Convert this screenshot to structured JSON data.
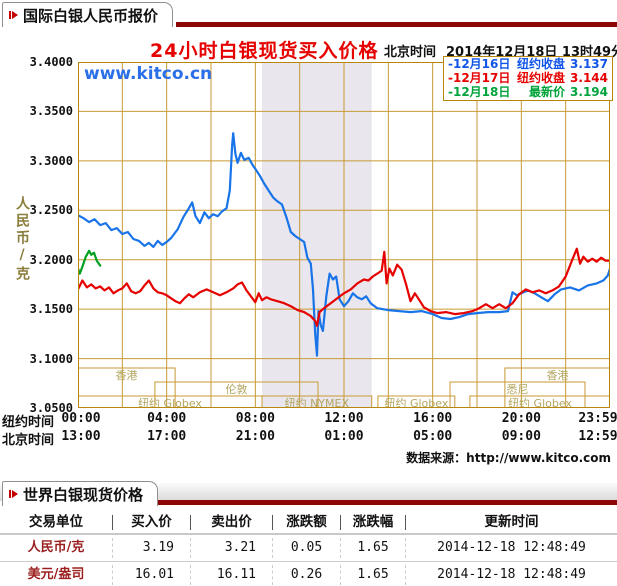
{
  "section1": {
    "tab": "国际白银人民币报价"
  },
  "section2": {
    "tab": "世界白银现货价格",
    "table": {
      "columns": [
        "交易单位",
        "买入价",
        "卖出价",
        "涨跌额",
        "涨跌幅",
        "更新时间"
      ],
      "rows": [
        [
          "人民币/克",
          "3.19",
          "3.21",
          "0.05",
          "1.65",
          "2014-12-18 12:48:49"
        ],
        [
          "美元/盎司",
          "16.01",
          "16.11",
          "0.26",
          "1.65",
          "2014-12-18 12:48:49"
        ]
      ]
    }
  },
  "chart_data": {
    "type": "line",
    "title": "24小时白银现货买入价格",
    "subtitle_label": "北京时间",
    "subtitle_time": "2014年12月18日 13时49分",
    "watermark": "www.kitco.cn",
    "ylabel": "人民币/克",
    "source": "数据来源：http://www.kitco.com",
    "ylim": [
      3.05,
      3.4
    ],
    "ytick_labels": [
      "3.4000",
      "3.3500",
      "3.3000",
      "3.2500",
      "3.2000",
      "3.1500",
      "3.1000",
      "3.0500"
    ],
    "x_hours": 24,
    "grid": "on",
    "nymex_band_hours": [
      8.3,
      13.25
    ],
    "xticks_ny": {
      "label": "纽约时间",
      "ticks": [
        "00:00",
        "04:00",
        "08:00",
        "12:00",
        "16:00",
        "20:00",
        "23:59"
      ]
    },
    "xticks_bj": {
      "label": "北京时间",
      "ticks": [
        "13:00",
        "17:00",
        "21:00",
        "01:00",
        "05:00",
        "09:00",
        "12:59"
      ]
    },
    "legend_position": "top-right",
    "legend": [
      {
        "label": "-12月16日",
        "desc": "纽约收盘",
        "value": "3.137",
        "color": "#1155e8"
      },
      {
        "label": "-12月17日",
        "desc": "纽约收盘",
        "value": "3.144",
        "color": "#e60000"
      },
      {
        "label": "-12月18日",
        "desc": "最新价",
        "value": "3.194",
        "color": "#00a33a"
      }
    ],
    "sessions": [
      {
        "row": 0,
        "start_h": 0,
        "end_h": 4.38,
        "label": "香港"
      },
      {
        "row": 0,
        "start_h": 19.26,
        "end_h": 24,
        "label": "香港"
      },
      {
        "row": 1,
        "start_h": 3.47,
        "end_h": 10.83,
        "label": "伦敦"
      },
      {
        "row": 1,
        "start_h": 16.78,
        "end_h": 22.87,
        "label": "悉尼"
      },
      {
        "row": 2,
        "start_h": 0,
        "end_h": 8.3,
        "label": "纽约 Globex"
      },
      {
        "row": 2,
        "start_h": 8.3,
        "end_h": 13.25,
        "label": "纽约 NYMEX"
      },
      {
        "row": 2,
        "start_h": 13.53,
        "end_h": 17.0,
        "label": "纽约 Globex"
      },
      {
        "row": 2,
        "start_h": 17.68,
        "end_h": 24,
        "label": "纽约 Globex"
      }
    ],
    "series": [
      {
        "name": "dec16",
        "color": "#1874e8",
        "width": 2.2,
        "points": [
          [
            0,
            3.245
          ],
          [
            0.25,
            3.242
          ],
          [
            0.5,
            3.238
          ],
          [
            0.75,
            3.241
          ],
          [
            1,
            3.235
          ],
          [
            1.25,
            3.237
          ],
          [
            1.5,
            3.23
          ],
          [
            1.75,
            3.232
          ],
          [
            2,
            3.226
          ],
          [
            2.25,
            3.228
          ],
          [
            2.5,
            3.221
          ],
          [
            2.75,
            3.219
          ],
          [
            3,
            3.214
          ],
          [
            3.2,
            3.217
          ],
          [
            3.4,
            3.213
          ],
          [
            3.6,
            3.219
          ],
          [
            3.8,
            3.215
          ],
          [
            4,
            3.218
          ],
          [
            4.2,
            3.222
          ],
          [
            4.5,
            3.231
          ],
          [
            4.75,
            3.243
          ],
          [
            5,
            3.252
          ],
          [
            5.15,
            3.258
          ],
          [
            5.3,
            3.244
          ],
          [
            5.5,
            3.237
          ],
          [
            5.7,
            3.248
          ],
          [
            5.9,
            3.242
          ],
          [
            6.1,
            3.246
          ],
          [
            6.3,
            3.244
          ],
          [
            6.5,
            3.249
          ],
          [
            6.7,
            3.252
          ],
          [
            6.85,
            3.27
          ],
          [
            6.95,
            3.315
          ],
          [
            7,
            3.328
          ],
          [
            7.1,
            3.307
          ],
          [
            7.2,
            3.298
          ],
          [
            7.35,
            3.308
          ],
          [
            7.5,
            3.301
          ],
          [
            7.7,
            3.303
          ],
          [
            7.9,
            3.295
          ],
          [
            8,
            3.292
          ],
          [
            8.2,
            3.285
          ],
          [
            8.4,
            3.277
          ],
          [
            8.6,
            3.27
          ],
          [
            8.8,
            3.263
          ],
          [
            9,
            3.259
          ],
          [
            9.2,
            3.256
          ],
          [
            9.4,
            3.243
          ],
          [
            9.6,
            3.228
          ],
          [
            9.8,
            3.224
          ],
          [
            10,
            3.221
          ],
          [
            10.2,
            3.218
          ],
          [
            10.35,
            3.202
          ],
          [
            10.5,
            3.196
          ],
          [
            10.6,
            3.17
          ],
          [
            10.7,
            3.125
          ],
          [
            10.78,
            3.103
          ],
          [
            10.85,
            3.148
          ],
          [
            10.95,
            3.134
          ],
          [
            11.05,
            3.128
          ],
          [
            11.2,
            3.163
          ],
          [
            11.35,
            3.186
          ],
          [
            11.5,
            3.18
          ],
          [
            11.65,
            3.183
          ],
          [
            11.8,
            3.16
          ],
          [
            12,
            3.153
          ],
          [
            12.2,
            3.158
          ],
          [
            12.4,
            3.166
          ],
          [
            12.6,
            3.162
          ],
          [
            12.8,
            3.16
          ],
          [
            13,
            3.163
          ],
          [
            13.2,
            3.156
          ],
          [
            13.5,
            3.151
          ],
          [
            14,
            3.149
          ],
          [
            14.5,
            3.148
          ],
          [
            15,
            3.147
          ],
          [
            15.5,
            3.148
          ],
          [
            16,
            3.145
          ],
          [
            16.4,
            3.141
          ],
          [
            16.8,
            3.14
          ],
          [
            17.2,
            3.142
          ],
          [
            17.6,
            3.145
          ],
          [
            18,
            3.146
          ],
          [
            18.5,
            3.147
          ],
          [
            19,
            3.147
          ],
          [
            19.4,
            3.148
          ],
          [
            19.6,
            3.167
          ],
          [
            19.8,
            3.164
          ],
          [
            20,
            3.166
          ],
          [
            20.3,
            3.169
          ],
          [
            20.6,
            3.166
          ],
          [
            20.9,
            3.162
          ],
          [
            21.2,
            3.158
          ],
          [
            21.5,
            3.165
          ],
          [
            21.8,
            3.17
          ],
          [
            22.2,
            3.172
          ],
          [
            22.6,
            3.169
          ],
          [
            23,
            3.174
          ],
          [
            23.4,
            3.176
          ],
          [
            23.7,
            3.179
          ],
          [
            23.9,
            3.184
          ],
          [
            24,
            3.191
          ]
        ]
      },
      {
        "name": "dec17",
        "color": "#e60000",
        "width": 2.2,
        "points": [
          [
            0,
            3.17
          ],
          [
            0.2,
            3.179
          ],
          [
            0.4,
            3.172
          ],
          [
            0.6,
            3.175
          ],
          [
            0.8,
            3.171
          ],
          [
            1,
            3.173
          ],
          [
            1.2,
            3.169
          ],
          [
            1.4,
            3.172
          ],
          [
            1.6,
            3.166
          ],
          [
            1.8,
            3.169
          ],
          [
            2,
            3.171
          ],
          [
            2.2,
            3.176
          ],
          [
            2.4,
            3.168
          ],
          [
            2.6,
            3.166
          ],
          [
            2.8,
            3.168
          ],
          [
            3,
            3.174
          ],
          [
            3.2,
            3.179
          ],
          [
            3.4,
            3.171
          ],
          [
            3.6,
            3.167
          ],
          [
            3.8,
            3.166
          ],
          [
            4,
            3.164
          ],
          [
            4.2,
            3.161
          ],
          [
            4.4,
            3.158
          ],
          [
            4.6,
            3.156
          ],
          [
            4.8,
            3.161
          ],
          [
            5,
            3.165
          ],
          [
            5.2,
            3.162
          ],
          [
            5.5,
            3.167
          ],
          [
            5.8,
            3.17
          ],
          [
            6.1,
            3.167
          ],
          [
            6.4,
            3.164
          ],
          [
            6.7,
            3.167
          ],
          [
            7,
            3.171
          ],
          [
            7.2,
            3.175
          ],
          [
            7.4,
            3.177
          ],
          [
            7.6,
            3.169
          ],
          [
            7.8,
            3.163
          ],
          [
            8,
            3.157
          ],
          [
            8.15,
            3.166
          ],
          [
            8.3,
            3.159
          ],
          [
            8.5,
            3.162
          ],
          [
            8.7,
            3.16
          ],
          [
            9,
            3.158
          ],
          [
            9.3,
            3.156
          ],
          [
            9.6,
            3.153
          ],
          [
            9.9,
            3.149
          ],
          [
            10.2,
            3.147
          ],
          [
            10.5,
            3.143
          ],
          [
            10.7,
            3.138
          ],
          [
            10.78,
            3.133
          ],
          [
            10.9,
            3.147
          ],
          [
            11.1,
            3.151
          ],
          [
            11.4,
            3.156
          ],
          [
            11.7,
            3.161
          ],
          [
            12,
            3.166
          ],
          [
            12.3,
            3.17
          ],
          [
            12.6,
            3.176
          ],
          [
            12.9,
            3.18
          ],
          [
            13.1,
            3.179
          ],
          [
            13.3,
            3.183
          ],
          [
            13.5,
            3.186
          ],
          [
            13.7,
            3.189
          ],
          [
            13.82,
            3.208
          ],
          [
            13.92,
            3.176
          ],
          [
            14.05,
            3.191
          ],
          [
            14.2,
            3.184
          ],
          [
            14.4,
            3.195
          ],
          [
            14.6,
            3.19
          ],
          [
            14.8,
            3.175
          ],
          [
            15,
            3.158
          ],
          [
            15.2,
            3.166
          ],
          [
            15.4,
            3.159
          ],
          [
            15.6,
            3.152
          ],
          [
            15.9,
            3.148
          ],
          [
            16.2,
            3.146
          ],
          [
            16.6,
            3.147
          ],
          [
            17,
            3.145
          ],
          [
            17.4,
            3.146
          ],
          [
            17.8,
            3.148
          ],
          [
            18.1,
            3.151
          ],
          [
            18.4,
            3.155
          ],
          [
            18.7,
            3.151
          ],
          [
            19,
            3.155
          ],
          [
            19.3,
            3.151
          ],
          [
            19.6,
            3.156
          ],
          [
            19.9,
            3.165
          ],
          [
            20.2,
            3.17
          ],
          [
            20.5,
            3.167
          ],
          [
            20.8,
            3.169
          ],
          [
            21.1,
            3.166
          ],
          [
            21.4,
            3.169
          ],
          [
            21.7,
            3.173
          ],
          [
            22,
            3.183
          ],
          [
            22.3,
            3.2
          ],
          [
            22.5,
            3.211
          ],
          [
            22.65,
            3.196
          ],
          [
            22.8,
            3.203
          ],
          [
            23,
            3.198
          ],
          [
            23.2,
            3.201
          ],
          [
            23.4,
            3.198
          ],
          [
            23.6,
            3.202
          ],
          [
            23.8,
            3.199
          ],
          [
            24,
            3.199
          ]
        ]
      },
      {
        "name": "dec18",
        "color": "#00a020",
        "width": 2.2,
        "points": [
          [
            0,
            3.191
          ],
          [
            0.08,
            3.186
          ],
          [
            0.2,
            3.193
          ],
          [
            0.35,
            3.203
          ],
          [
            0.5,
            3.209
          ],
          [
            0.6,
            3.205
          ],
          [
            0.72,
            3.207
          ],
          [
            0.85,
            3.199
          ],
          [
            1,
            3.194
          ]
        ]
      }
    ]
  }
}
